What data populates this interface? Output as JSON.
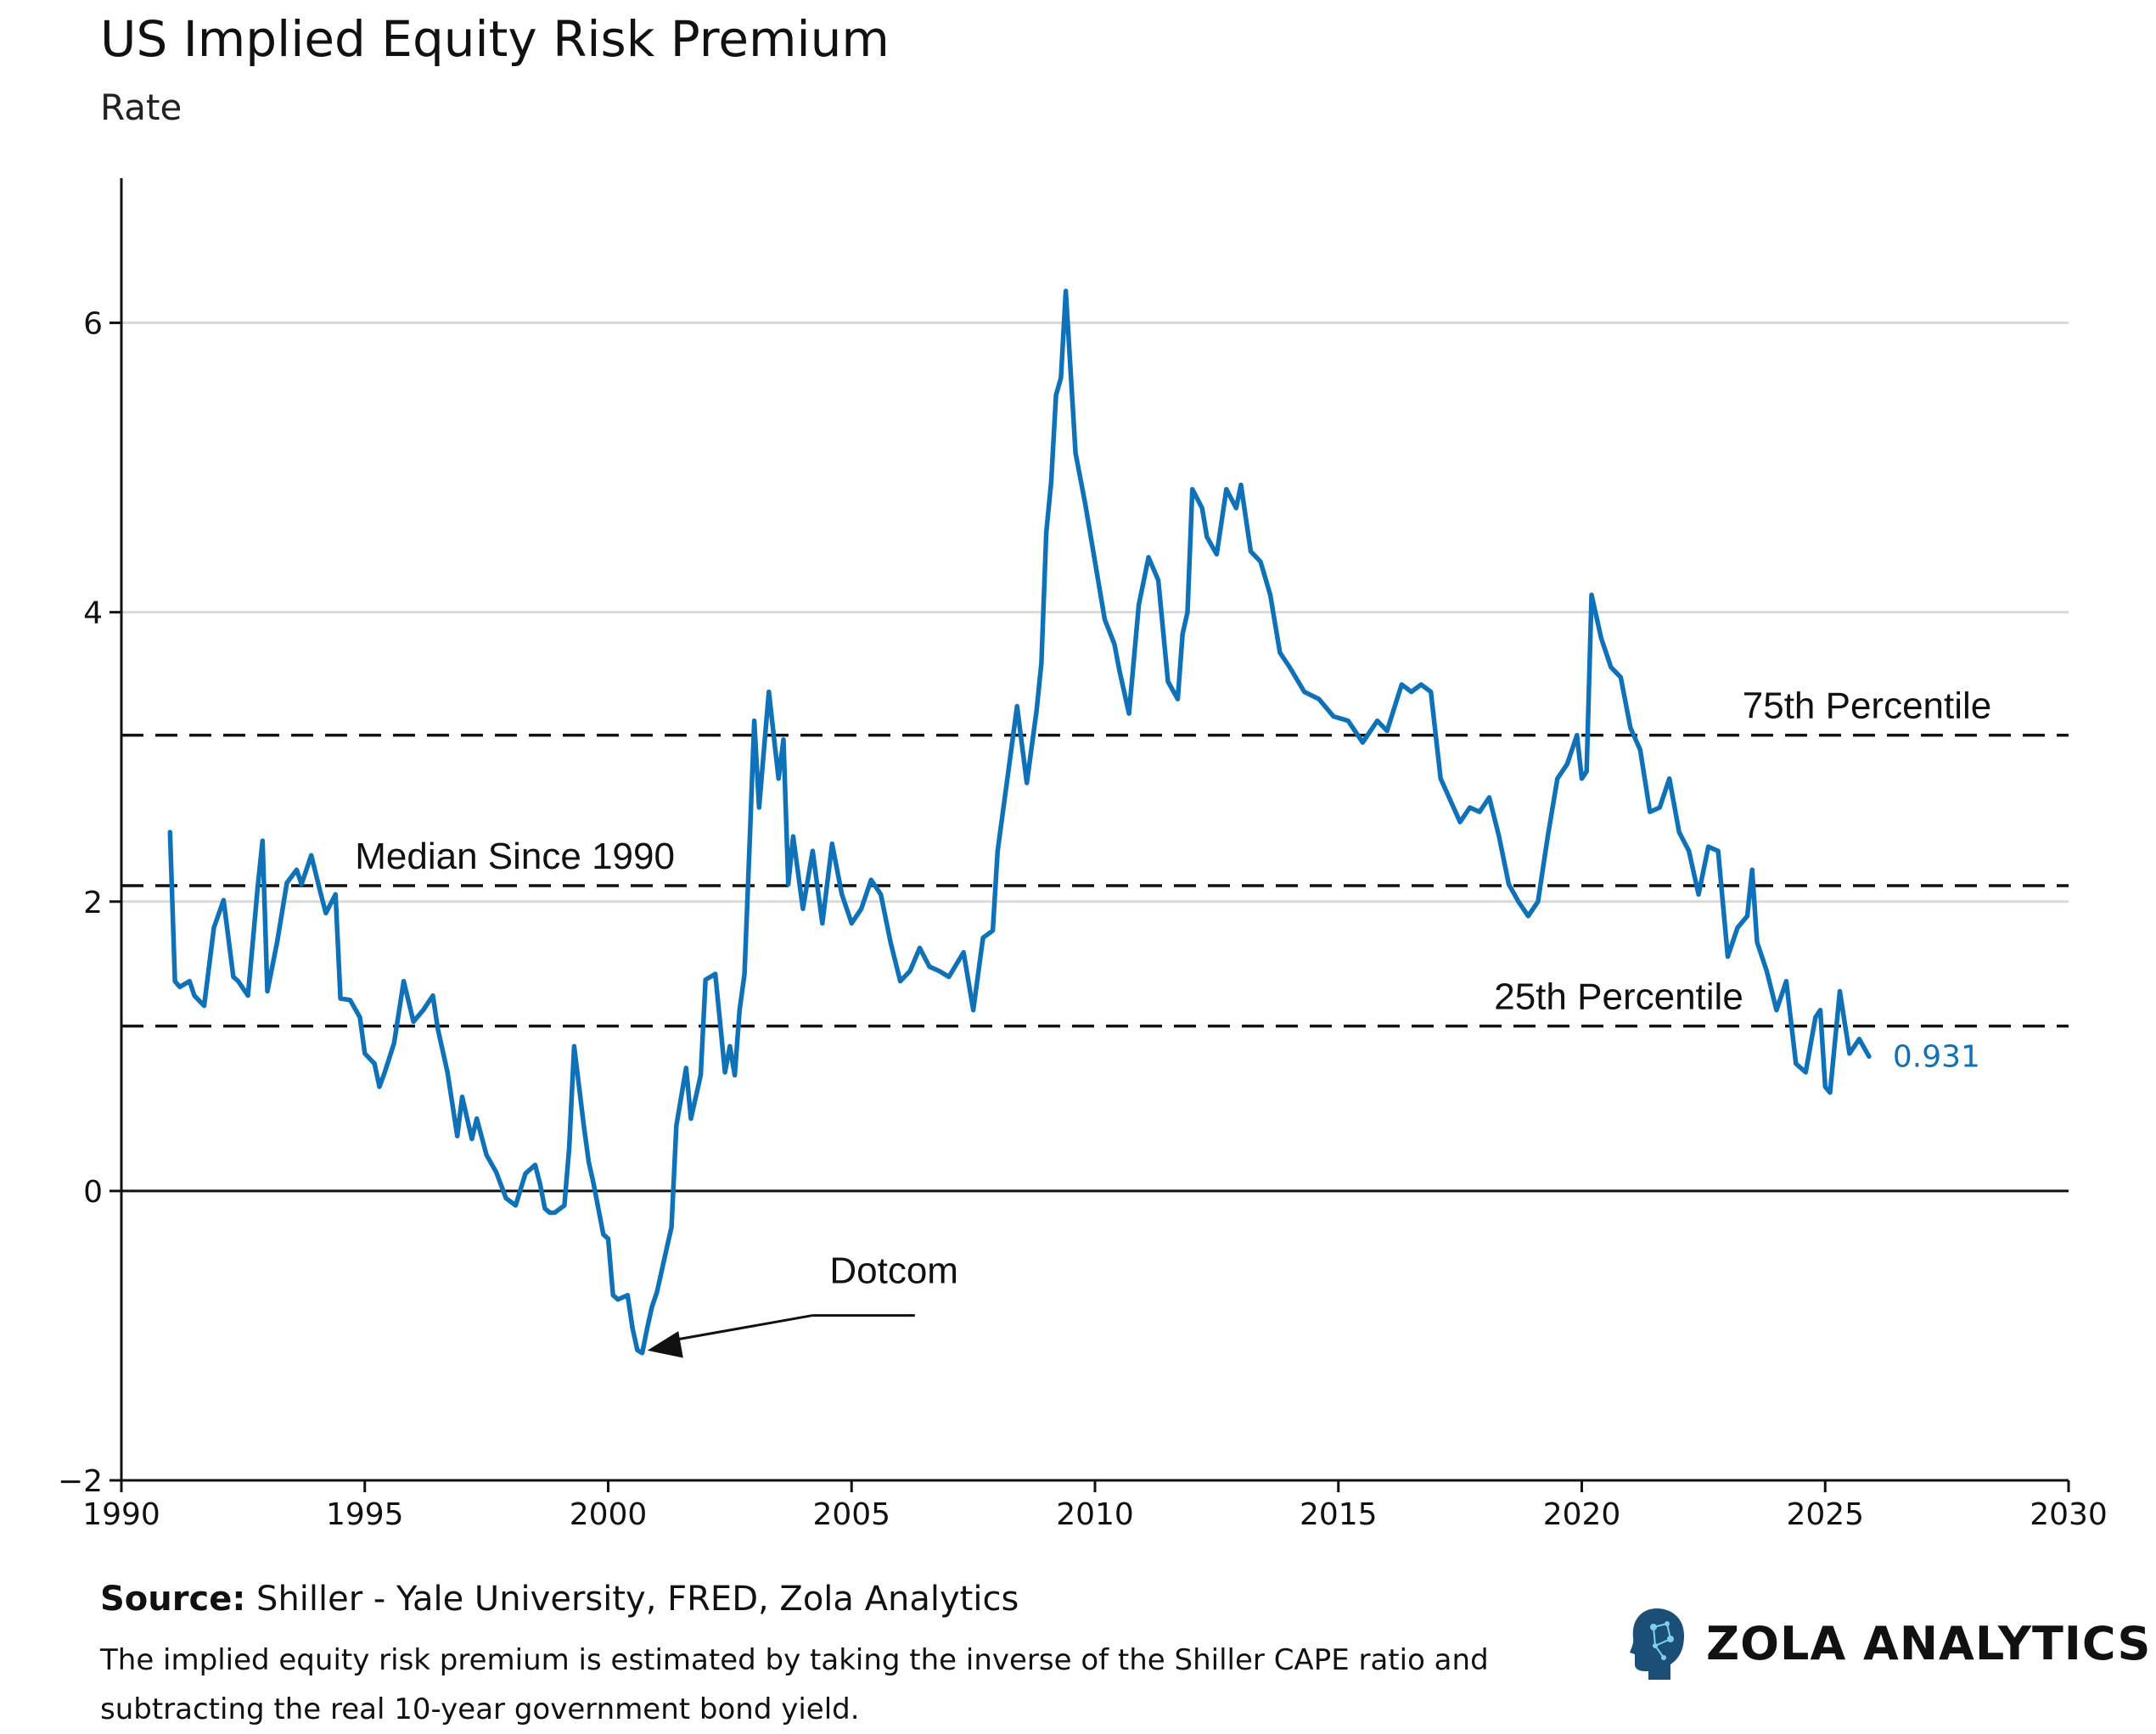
{
  "header": {
    "title": "US Implied Equity Risk Premium",
    "subtitle": "Rate"
  },
  "footer": {
    "source_label": "Source:",
    "source_text": "Shiller - Yale University, FRED, Zola Analytics",
    "note": "The implied equity risk premium is estimated by taking the inverse of the Shiller CAPE ratio and subtracting the real 10-year government bond yield."
  },
  "brand": {
    "name": "ZOLA ANALYTICS",
    "icon": "head-circuit-icon"
  },
  "colors": {
    "series": "#0F72B8",
    "reference": "#111111",
    "grid": "#D9D9D9"
  },
  "chart_data": {
    "type": "line",
    "title": "US Implied Equity Risk Premium",
    "ylabel": "Rate",
    "xlabel": "",
    "xlim": [
      1990,
      2030
    ],
    "ylim": [
      -2,
      7
    ],
    "x_ticks": [
      1990,
      1995,
      2000,
      2005,
      2010,
      2015,
      2020,
      2025,
      2030
    ],
    "y_ticks": [
      -2,
      0,
      2,
      4,
      6
    ],
    "x_tick_labels": [
      "1990",
      "1995",
      "2000",
      "2005",
      "2010",
      "2015",
      "2020",
      "2025",
      "2030"
    ],
    "y_tick_labels": [
      "−2",
      "0",
      "2",
      "4",
      "6"
    ],
    "gridlines": [
      2,
      4,
      6
    ],
    "zero_line": 0,
    "reference_lines": [
      {
        "name": "75th Percentile",
        "value": 3.15,
        "label": "75th Percentile",
        "label_x": 2023.3
      },
      {
        "name": "Median Since 1990",
        "value": 2.11,
        "label": "Median Since 1990",
        "label_x": 1994.8
      },
      {
        "name": "25th Percentile",
        "value": 1.14,
        "label": "25th Percentile",
        "label_x": 2018.2
      }
    ],
    "annotation": {
      "text": "Dotcom",
      "point": [
        2000.7,
        -1.12
      ],
      "text_x": 2004.2,
      "text_y": -0.52
    },
    "last_value_label": "0.931",
    "series": [
      {
        "name": "Implied ERP",
        "x": [
          1991.0,
          1991.1,
          1991.2,
          1991.4,
          1991.5,
          1991.7,
          1991.9,
          1992.1,
          1992.3,
          1992.4,
          1992.6,
          1992.7,
          1992.8,
          1992.9,
          1993.0,
          1993.2,
          1993.4,
          1993.6,
          1993.7,
          1993.9,
          1994.1,
          1994.2,
          1994.4,
          1994.5,
          1994.7,
          1994.9,
          1995.0,
          1995.2,
          1995.3,
          1995.4,
          1995.6,
          1995.8,
          1996.0,
          1996.2,
          1996.4,
          1996.5,
          1996.7,
          1996.9,
          1997.0,
          1997.2,
          1997.3,
          1997.5,
          1997.7,
          1997.9,
          1998.1,
          1998.3,
          1998.5,
          1998.6,
          1998.7,
          1998.8,
          1998.9,
          1999.1,
          1999.2,
          1999.3,
          1999.5,
          1999.6,
          1999.7,
          1999.9,
          2000.0,
          2000.1,
          2000.2,
          2000.4,
          2000.5,
          2000.6,
          2000.7,
          2000.8,
          2000.9,
          2001.0,
          2001.2,
          2001.3,
          2001.4,
          2001.6,
          2001.7,
          2001.9,
          2002.0,
          2002.2,
          2002.4,
          2002.5,
          2002.6,
          2002.7,
          2002.8,
          2002.9,
          2003.0,
          2003.1,
          2003.2,
          2003.3,
          2003.5,
          2003.6,
          2003.7,
          2003.8,
          2004.0,
          2004.2,
          2004.4,
          2004.6,
          2004.8,
          2005.0,
          2005.2,
          2005.4,
          2005.6,
          2005.8,
          2006.0,
          2006.2,
          2006.4,
          2006.6,
          2006.8,
          2007.0,
          2007.3,
          2007.5,
          2007.7,
          2007.9,
          2008.0,
          2008.2,
          2008.4,
          2008.6,
          2008.8,
          2008.9,
          2009.0,
          2009.1,
          2009.2,
          2009.3,
          2009.4,
          2009.6,
          2009.8,
          2010.0,
          2010.2,
          2010.4,
          2010.5,
          2010.7,
          2010.9,
          2011.1,
          2011.3,
          2011.5,
          2011.7,
          2011.8,
          2011.9,
          2012.0,
          2012.2,
          2012.3,
          2012.5,
          2012.7,
          2012.9,
          2013.0,
          2013.2,
          2013.4,
          2013.6,
          2013.8,
          2014.0,
          2014.3,
          2014.6,
          2014.9,
          2015.2,
          2015.5,
          2015.8,
          2016.0,
          2016.3,
          2016.5,
          2016.7,
          2016.9,
          2017.1,
          2017.3,
          2017.5,
          2017.7,
          2017.9,
          2018.1,
          2018.3,
          2018.5,
          2018.7,
          2018.9,
          2019.1,
          2019.3,
          2019.5,
          2019.7,
          2019.9,
          2020.0,
          2020.1,
          2020.2,
          2020.4,
          2020.6,
          2020.8,
          2021.0,
          2021.2,
          2021.4,
          2021.6,
          2021.8,
          2022.0,
          2022.2,
          2022.4,
          2022.6,
          2022.8,
          2023.0,
          2023.2,
          2023.4,
          2023.5,
          2023.6,
          2023.8,
          2024.0,
          2024.2,
          2024.4,
          2024.6,
          2024.8,
          2024.9,
          2025.0,
          2025.1,
          2025.3,
          2025.5,
          2025.7,
          2025.9
        ],
        "y": [
          2.48,
          1.45,
          1.41,
          1.45,
          1.35,
          1.28,
          1.82,
          2.01,
          1.48,
          1.45,
          1.35,
          1.72,
          2.1,
          2.42,
          1.38,
          1.72,
          2.13,
          2.22,
          2.12,
          2.32,
          2.05,
          1.92,
          2.05,
          1.33,
          1.32,
          1.2,
          0.95,
          0.88,
          0.72,
          0.81,
          1.02,
          1.45,
          1.17,
          1.25,
          1.35,
          1.12,
          0.82,
          0.38,
          0.65,
          0.36,
          0.5,
          0.25,
          0.13,
          -0.05,
          -0.1,
          0.12,
          0.18,
          0.05,
          -0.12,
          -0.15,
          -0.15,
          -0.1,
          0.3,
          1.0,
          0.45,
          0.2,
          0.05,
          -0.3,
          -0.33,
          -0.72,
          -0.75,
          -0.72,
          -0.95,
          -1.1,
          -1.12,
          -0.95,
          -0.8,
          -0.7,
          -0.4,
          -0.25,
          0.45,
          0.85,
          0.5,
          0.8,
          1.46,
          1.5,
          0.82,
          1.0,
          0.8,
          1.25,
          1.5,
          2.35,
          3.25,
          2.65,
          3.05,
          3.45,
          2.85,
          3.12,
          2.12,
          2.45,
          1.95,
          2.35,
          1.85,
          2.4,
          2.05,
          1.85,
          1.95,
          2.15,
          2.05,
          1.72,
          1.45,
          1.52,
          1.68,
          1.55,
          1.52,
          1.48,
          1.65,
          1.25,
          1.75,
          1.8,
          2.35,
          2.85,
          3.35,
          2.82,
          3.32,
          3.65,
          4.55,
          4.9,
          5.5,
          5.62,
          6.22,
          5.1,
          4.75,
          4.35,
          3.95,
          3.78,
          3.6,
          3.3,
          4.05,
          4.38,
          4.22,
          3.52,
          3.4,
          3.85,
          4.0,
          4.85,
          4.72,
          4.52,
          4.4,
          4.85,
          4.72,
          4.88,
          4.42,
          4.35,
          4.12,
          3.72,
          3.62,
          3.45,
          3.4,
          3.28,
          3.25,
          3.1,
          3.25,
          3.18,
          3.5,
          3.45,
          3.5,
          3.45,
          2.85,
          2.7,
          2.55,
          2.65,
          2.62,
          2.72,
          2.45,
          2.12,
          2.0,
          1.9,
          2.0,
          2.45,
          2.85,
          2.95,
          3.15,
          2.85,
          2.9,
          4.12,
          3.82,
          3.62,
          3.55,
          3.2,
          3.05,
          2.62,
          2.65,
          2.85,
          2.48,
          2.35,
          2.05,
          2.38,
          2.35,
          1.62,
          1.82,
          1.9,
          2.22,
          1.72,
          1.52,
          1.25,
          1.45,
          0.88,
          0.82,
          1.2,
          1.25,
          0.72,
          0.68,
          1.38,
          0.95,
          1.05,
          0.93
        ],
        "color": "#0F72B8"
      }
    ]
  }
}
